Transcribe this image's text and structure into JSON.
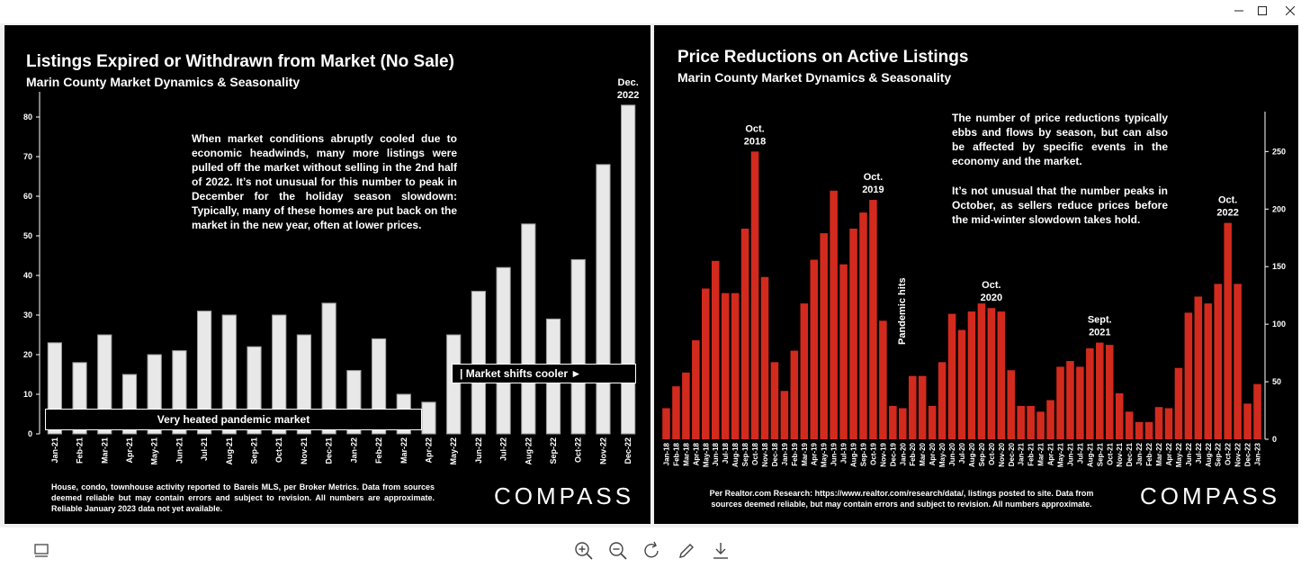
{
  "window": {
    "controls": [
      {
        "name": "minimize-button",
        "glyph": "–"
      },
      {
        "name": "maximize-button",
        "glyph": "☐"
      },
      {
        "name": "close-button",
        "glyph": "✕"
      }
    ]
  },
  "left_panel": {
    "title": "Listings Expired or Withdrawn from Market (No Sale)",
    "subtitle": "Marin County Market Dynamics & Seasonality",
    "text": "When market conditions abruptly cooled due to economic headwinds, many more listings were pulled off the market without selling in the 2nd half of 2022. It’s not unusual for this number to peak in December for the holiday season slowdown: Typically, many of these homes are put back on the market in the new year, often at lower prices.",
    "peak_label": [
      "Dec.",
      "2022"
    ],
    "band_label": "Very heated pandemic market",
    "shift_label": "| Market shifts cooler ►",
    "footnote": "House, condo, townhouse activity reported to Bareis MLS, per Broker Metrics. Data from sources deemed reliable but may contain errors and subject to revision. All numbers are approximate. Reliable January 2023 data not yet available.",
    "logo": "COMPASS"
  },
  "right_panel": {
    "title": "Price Reductions on Active Listings",
    "subtitle": "Marin County Market Dynamics & Seasonality",
    "text1": "The number of price reductions typically ebbs and flows by season, but can also be affected by specific events in the economy and the market.",
    "text2": "It’s not unusual that the number peaks in October, as sellers reduce prices before the mid-winter slowdown takes hold.",
    "pandemic_label": "Pandemic hits",
    "footnote": "Per Realtor.com Research:  https://www.realtor.com/research/data/, listings posted to site. Data from sources deemed reliable, but may contain errors and subject to revision. All numbers approximate.",
    "logo": "COMPASS"
  },
  "chart_data": [
    {
      "type": "bar",
      "title": "Listings Expired or Withdrawn from Market (No Sale)",
      "categories": [
        "Jan-21",
        "Feb-21",
        "Mar-21",
        "Apr-21",
        "May-21",
        "Jun-21",
        "Jul-21",
        "Aug-21",
        "Sep-21",
        "Oct-21",
        "Nov-21",
        "Dec-21",
        "Jan-22",
        "Feb-22",
        "Mar-22",
        "Apr-22",
        "May-22",
        "Jun-22",
        "Jul-22",
        "Aug-22",
        "Sep-22",
        "Oct-22",
        "Nov-22",
        "Dec-22"
      ],
      "values": [
        23,
        18,
        25,
        15,
        20,
        21,
        31,
        30,
        22,
        30,
        25,
        33,
        16,
        24,
        10,
        8,
        25,
        36,
        42,
        53,
        29,
        44,
        68,
        83
      ],
      "ylim": [
        0,
        85
      ],
      "yticks": [
        0,
        10,
        20,
        30,
        40,
        50,
        60,
        70,
        80
      ],
      "axis_side": "left",
      "bar_color": "#e8e8e8",
      "annotations": [
        {
          "category": "Dec-22",
          "text": [
            "Dec.",
            "2022"
          ]
        }
      ]
    },
    {
      "type": "bar",
      "title": "Price Reductions on Active Listings",
      "categories": [
        "Jan-18",
        "Feb-18",
        "Mar-18",
        "Apr-18",
        "May-18",
        "Jun-18",
        "Jul-18",
        "Aug-18",
        "Sep-18",
        "Oct-18",
        "Nov-18",
        "Dec-18",
        "Jan-19",
        "Feb-19",
        "Mar-19",
        "Apr-19",
        "May-19",
        "Jun-19",
        "Jul-19",
        "Aug-19",
        "Sep-19",
        "Oct-19",
        "Nov-19",
        "Dec-19",
        "Jan-20",
        "Feb-20",
        "Mar-20",
        "Apr-20",
        "May-20",
        "Jun-20",
        "Jul-20",
        "Aug-20",
        "Sep-20",
        "Oct-20",
        "Nov-20",
        "Dec-20",
        "Jan-21",
        "Feb-21",
        "Mar-21",
        "Apr-21",
        "May-21",
        "Jun-21",
        "Jul-21",
        "Aug-21",
        "Sep-21",
        "Oct-21",
        "Nov-21",
        "Dec-21",
        "Jan-22",
        "Feb-22",
        "Mar-22",
        "Apr-22",
        "May-22",
        "Jun-22",
        "Jul-22",
        "Aug-22",
        "Sep-22",
        "Oct-22",
        "Nov-22",
        "Dec-22",
        "Jan-23"
      ],
      "values": [
        27,
        46,
        58,
        86,
        131,
        155,
        127,
        127,
        183,
        250,
        141,
        67,
        42,
        77,
        118,
        156,
        179,
        216,
        152,
        183,
        197,
        208,
        103,
        29,
        27,
        55,
        55,
        29,
        67,
        109,
        95,
        111,
        118,
        114,
        111,
        60,
        29,
        29,
        24,
        34,
        63,
        68,
        63,
        79,
        84,
        82,
        40,
        24,
        15,
        15,
        28,
        27,
        62,
        110,
        124,
        118,
        135,
        188,
        135,
        31,
        48
      ],
      "ylim": [
        0,
        280
      ],
      "yticks": [
        0,
        50,
        100,
        150,
        200,
        250
      ],
      "axis_side": "right",
      "bar_color": "#d32a1e",
      "annotations": [
        {
          "category": "Oct-18",
          "text": [
            "Oct.",
            "2018"
          ]
        },
        {
          "category": "Oct-19",
          "text": [
            "Oct.",
            "2019"
          ]
        },
        {
          "category": "Oct-20",
          "text": [
            "Oct.",
            "2020"
          ]
        },
        {
          "category": "Sep-21",
          "text": [
            "Sept.",
            "2021"
          ]
        },
        {
          "category": "Oct-22",
          "text": [
            "Oct.",
            "2022"
          ]
        }
      ]
    }
  ],
  "toolbar": {
    "buttons": [
      {
        "name": "view-mode-icon"
      },
      {
        "name": "zoom-in-icon"
      },
      {
        "name": "zoom-out-icon"
      },
      {
        "name": "rotate-icon"
      },
      {
        "name": "edit-icon"
      },
      {
        "name": "download-icon"
      }
    ]
  }
}
